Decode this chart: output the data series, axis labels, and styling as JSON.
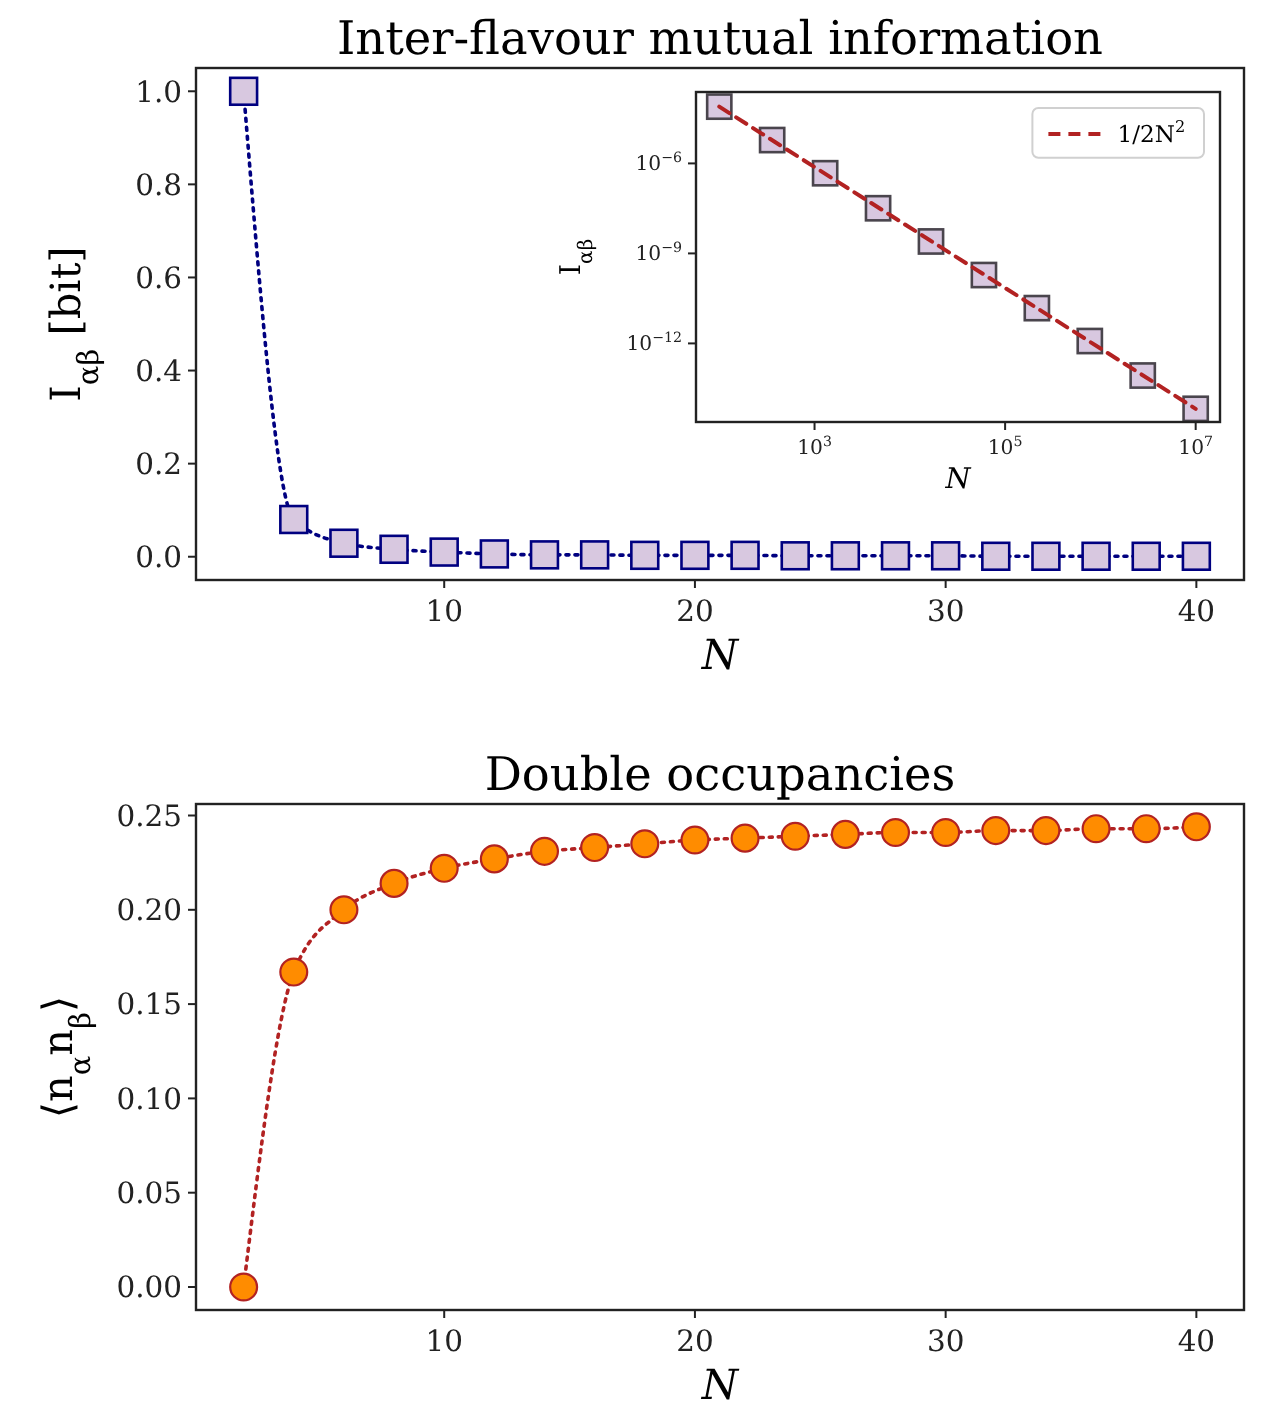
{
  "chart_data": [
    {
      "type": "line",
      "title": "Inter-flavour mutual information",
      "xlabel": "N",
      "ylabel": "I$_{αβ}$ [bit]",
      "x": [
        2,
        4,
        6,
        8,
        10,
        12,
        14,
        16,
        18,
        20,
        22,
        24,
        26,
        28,
        30,
        32,
        34,
        36,
        38,
        40
      ],
      "xlim": [
        0.1,
        41.9
      ],
      "xticks": [
        10,
        20,
        30,
        40
      ],
      "ylim": [
        -0.05,
        1.05
      ],
      "yticks": [
        {
          "value": 0,
          "label": "0.0"
        },
        0.2,
        0.4,
        0.6,
        0.8,
        {
          "value": 1,
          "label": "1.0"
        }
      ],
      "marker": "square",
      "line_style": "dotted",
      "series": [
        {
          "color": "#000080",
          "marker": "none",
          "values": [
            1.0,
            0.08,
            0.029,
            0.016,
            0.01,
            0.006,
            0.004,
            0.004,
            0.003,
            0.003,
            0.003,
            0.002,
            0.002,
            0.002,
            0.002,
            0.001,
            0.001,
            0.001,
            0.001,
            0.001
          ]
        },
        {
          "type": "scatter",
          "color": "#d8c8e0",
          "values": [
            1.0,
            0.08,
            0.029,
            0.016,
            0.01,
            0.006,
            0.004,
            0.004,
            0.003,
            0.003,
            0.003,
            0.002,
            0.002,
            0.002,
            0.002,
            0.001,
            0.001,
            0.001,
            0.001,
            0.001
          ]
        }
      ]
    },
    {
      "type": "scatter",
      "xlabel": "N",
      "ylabel": "I$_{αβ}$",
      "log": "xy",
      "xlim": [
        57,
        18000000
      ],
      "xticks": [
        {
          "value": 1000,
          "label": "10$^{3}$"
        },
        {
          "value": 100000,
          "label": "10$^{5}$"
        },
        {
          "value": 10000000,
          "label": "10$^{7}$"
        }
      ],
      "ylim": [
        2.4e-15,
        0.00024
      ],
      "yticks": [
        {
          "value": 1e-06,
          "label": "10$^{−6}$"
        },
        {
          "value": 1e-09,
          "label": "10$^{−9}$"
        },
        {
          "value": 1e-12,
          "label": "10$^{−12}$"
        }
      ],
      "marker": "square",
      "legend": "top right",
      "series": [
        {
          "color": "#d8c8e0",
          "x": [
            100,
            359,
            1292,
            4642,
            16681,
            59948,
            215443,
            774264,
            2782559,
            10000000
          ],
          "values": [
            7.8e-05,
            6e-06,
            4.7e-07,
            3.2e-08,
            2.5e-09,
            1.9e-10,
            1.5e-11,
            1.2e-12,
            8.5e-14,
            6.6e-15
          ]
        },
        {
          "type": "line",
          "name": "1/2N$^{2}$",
          "color": "#b22222",
          "line_style": "dashed",
          "marker": "none",
          "x": [
            100,
            10000000
          ],
          "values": [
            7.8e-05,
            6.6e-15
          ]
        }
      ]
    },
    {
      "type": "line",
      "title": "Double occupancies",
      "xlabel": "N",
      "ylabel": "⟨n$_{α}$n$_{β}$⟩",
      "x": [
        2,
        4,
        6,
        8,
        10,
        12,
        14,
        16,
        18,
        20,
        22,
        24,
        26,
        28,
        30,
        32,
        34,
        36,
        38,
        40
      ],
      "xlim": [
        0.1,
        41.9
      ],
      "xticks": [
        10,
        20,
        30,
        40
      ],
      "ylim": [
        -0.0122,
        0.2561
      ],
      "yticks": [
        {
          "value": 0,
          "label": "0.00"
        },
        {
          "value": 0.05,
          "label": "0.05"
        },
        {
          "value": 0.1,
          "label": "0.10"
        },
        {
          "value": 0.15,
          "label": "0.15"
        },
        {
          "value": 0.2,
          "label": "0.20"
        },
        {
          "value": 0.25,
          "label": "0.25"
        }
      ],
      "marker": "circle",
      "line_style": "dotted",
      "series": [
        {
          "color": "#b22222",
          "marker": "none",
          "values": [
            0,
            0.167,
            0.2,
            0.214,
            0.222,
            0.227,
            0.231,
            0.233,
            0.235,
            0.237,
            0.238,
            0.239,
            0.24,
            0.241,
            0.241,
            0.242,
            0.242,
            0.243,
            0.243,
            0.244
          ]
        },
        {
          "type": "scatter",
          "color": "#ff8c00",
          "values": [
            0,
            0.167,
            0.2,
            0.214,
            0.222,
            0.227,
            0.231,
            0.233,
            0.235,
            0.237,
            0.238,
            0.239,
            0.24,
            0.241,
            0.241,
            0.242,
            0.242,
            0.243,
            0.243,
            0.244
          ]
        }
      ]
    }
  ]
}
